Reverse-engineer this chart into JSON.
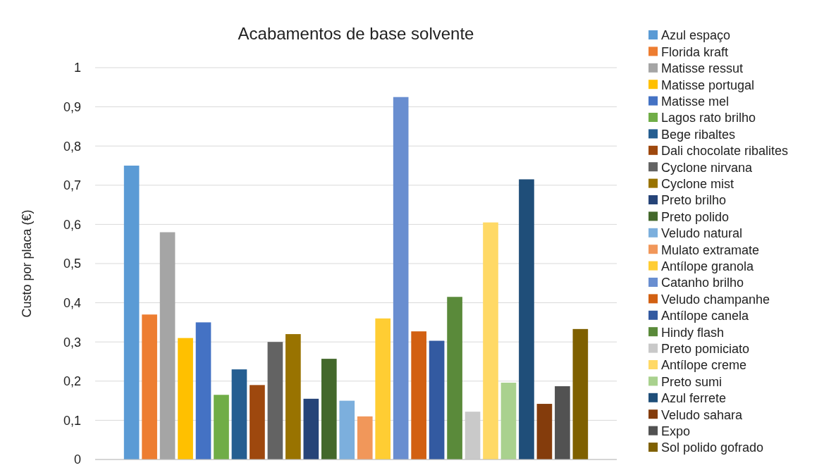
{
  "chart_data": {
    "type": "bar",
    "title": "Acabamentos de base solvente",
    "ylabel": "Custo por placa (€)",
    "categories": [
      null
    ],
    "ylim": [
      0,
      1
    ],
    "yticks": [
      0,
      {
        "value": 0.1,
        "label": "0,1"
      },
      {
        "value": 0.2,
        "label": "0,2"
      },
      {
        "value": 0.3,
        "label": "0,3"
      },
      {
        "value": 0.4,
        "label": "0,4"
      },
      {
        "value": 0.5,
        "label": "0,5"
      },
      {
        "value": 0.6,
        "label": "0,6"
      },
      {
        "value": 0.7,
        "label": "0,7"
      },
      {
        "value": 0.8,
        "label": "0,8"
      },
      {
        "value": 0.9,
        "label": "0,9"
      },
      1
    ],
    "grid": "y",
    "legend": "right",
    "series": [
      {
        "name": "Azul espaço",
        "color": "#5b9bd5",
        "values": [
          0.75
        ]
      },
      {
        "name": "Florida kraft",
        "color": "#ed7d31",
        "values": [
          0.37
        ]
      },
      {
        "name": "Matisse ressut",
        "color": "#a5a5a5",
        "values": [
          0.58
        ]
      },
      {
        "name": "Matisse portugal",
        "color": "#ffc000",
        "values": [
          0.31
        ]
      },
      {
        "name": "Matisse mel",
        "color": "#4472c4",
        "values": [
          0.35
        ]
      },
      {
        "name": "Lagos rato brilho",
        "color": "#70ad47",
        "values": [
          0.165
        ]
      },
      {
        "name": "Bege ribaltes",
        "color": "#255e91",
        "values": [
          0.23
        ]
      },
      {
        "name": "Dali chocolate ribalites",
        "color": "#9e480e",
        "values": [
          0.19
        ]
      },
      {
        "name": "Cyclone nirvana",
        "color": "#636363",
        "values": [
          0.3
        ]
      },
      {
        "name": "Cyclone mist",
        "color": "#997300",
        "values": [
          0.32
        ]
      },
      {
        "name": "Preto brilho",
        "color": "#264478",
        "values": [
          0.155
        ]
      },
      {
        "name": "Preto polido",
        "color": "#43682b",
        "values": [
          0.257
        ]
      },
      {
        "name": "Veludo natural",
        "color": "#7cafdd",
        "values": [
          0.15
        ]
      },
      {
        "name": "Mulato extramate",
        "color": "#f1975a",
        "values": [
          0.11
        ]
      },
      {
        "name": "Antílope granola",
        "color": "#ffcd33",
        "values": [
          0.36
        ]
      },
      {
        "name": "Catanho brilho",
        "color": "#698ed0",
        "values": [
          0.925
        ]
      },
      {
        "name": "Veludo champanhe",
        "color": "#d26012",
        "values": [
          0.327
        ]
      },
      {
        "name": "Antílope canela",
        "color": "#335aa1",
        "values": [
          0.303
        ]
      },
      {
        "name": "Hindy flash",
        "color": "#5a8a3a",
        "values": [
          0.415
        ]
      },
      {
        "name": "Preto pomiciato",
        "color": "#c9c9c9",
        "values": [
          0.122
        ]
      },
      {
        "name": "Antílope creme",
        "color": "#ffd966",
        "values": [
          0.605
        ]
      },
      {
        "name": "Preto sumi",
        "color": "#a9d18e",
        "values": [
          0.196
        ]
      },
      {
        "name": "Azul ferrete",
        "color": "#1f4e79",
        "values": [
          0.715
        ]
      },
      {
        "name": "Veludo sahara",
        "color": "#843c0c",
        "values": [
          0.142
        ]
      },
      {
        "name": "Expo",
        "color": "#525252",
        "values": [
          0.187
        ]
      },
      {
        "name": "Sol polido gofrado",
        "color": "#7f6000",
        "values": [
          0.333
        ]
      }
    ]
  }
}
